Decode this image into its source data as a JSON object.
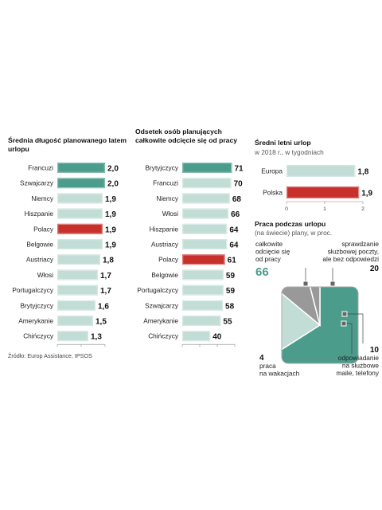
{
  "colors": {
    "teal": "#4b9c8b",
    "red": "#c8312b",
    "light": "#c2ddd5",
    "shade": "#999999"
  },
  "chart_data": [
    {
      "type": "bar",
      "title": "Średnia długość planowanego latem urlopu",
      "categories": [
        "Francuzi",
        "Szwajcarzy",
        "Niemcy",
        "Hiszpanie",
        "Polacy",
        "Belgowie",
        "Austriacy",
        "Włosi",
        "Portugalczycy",
        "Brytyjczycy",
        "Amerykanie",
        "Chińczycy"
      ],
      "values": [
        2.0,
        2.0,
        1.9,
        1.9,
        1.9,
        1.9,
        1.8,
        1.7,
        1.7,
        1.6,
        1.5,
        1.3
      ],
      "value_labels": [
        "2,0",
        "2,0",
        "1,9",
        "1,9",
        "1,9",
        "1,9",
        "1,8",
        "1,7",
        "1,7",
        "1,6",
        "1,5",
        "1,3"
      ],
      "bar_colors": [
        "teal",
        "teal",
        "light",
        "light",
        "red",
        "light",
        "light",
        "light",
        "light",
        "light",
        "light",
        "light"
      ],
      "xlim": [
        0,
        2
      ],
      "xticks": [
        {
          "v": 0,
          "label": "0"
        },
        {
          "v": 1,
          "label": "1"
        },
        {
          "v": 2,
          "label": "2"
        }
      ]
    },
    {
      "type": "bar",
      "title": "Odsetek osób planujących całkowite odcięcie się od pracy",
      "categories": [
        "Brytyjczycy",
        "Francuzi",
        "Niemcy",
        "Włosi",
        "Hiszpanie",
        "Austriacy",
        "Polacy",
        "Belgowie",
        "Portugalczycy",
        "Szwajcarzy",
        "Amerykanie",
        "Chińczycy"
      ],
      "values": [
        71,
        70,
        68,
        66,
        64,
        64,
        61,
        59,
        59,
        58,
        55,
        40
      ],
      "value_labels": [
        "71",
        "70",
        "68",
        "66",
        "64",
        "64",
        "61",
        "59",
        "59",
        "58",
        "55",
        "40"
      ],
      "bar_colors": [
        "teal",
        "light",
        "light",
        "light",
        "light",
        "light",
        "red",
        "light",
        "light",
        "light",
        "light",
        "light"
      ],
      "xlim": [
        0,
        75
      ],
      "xticks": [
        {
          "v": 0,
          "label": "0"
        },
        {
          "v": 25,
          "label": "25"
        },
        {
          "v": 50,
          "label": "50"
        },
        {
          "v": 75,
          "label": "75"
        }
      ]
    },
    {
      "type": "bar",
      "title": "Średni letni urlop",
      "subtitle": "w 2018 r., w tygodniach",
      "categories": [
        "Europa",
        "Polska"
      ],
      "values": [
        1.8,
        1.9
      ],
      "value_labels": [
        "1,8",
        "1,9"
      ],
      "bar_colors": [
        "light",
        "red"
      ],
      "xlim": [
        0,
        2
      ],
      "xticks": [
        {
          "v": 0,
          "label": "0"
        },
        {
          "v": 1,
          "label": "1"
        },
        {
          "v": 2,
          "label": "2"
        }
      ]
    },
    {
      "type": "pie",
      "title": "Praca podczas urlopu",
      "subtitle": "(na świecie) plany, w proc.",
      "slices": [
        {
          "label": "całkowite odcięcie się od pracy",
          "value": 66,
          "value_label": "66",
          "color": "teal"
        },
        {
          "label": "sprawdzanie służbowej poczty, ale bez odpowiedzi",
          "value": 20,
          "value_label": "20",
          "color": "light"
        },
        {
          "label": "odpowiadanie na służbowe maile, telefony",
          "value": 10,
          "value_label": "10",
          "color": "shade"
        },
        {
          "label": "praca na wakacjach",
          "value": 4,
          "value_label": "4",
          "color": "shade"
        }
      ]
    }
  ],
  "source": "Źródło: Europ Assistance, IPSOS"
}
